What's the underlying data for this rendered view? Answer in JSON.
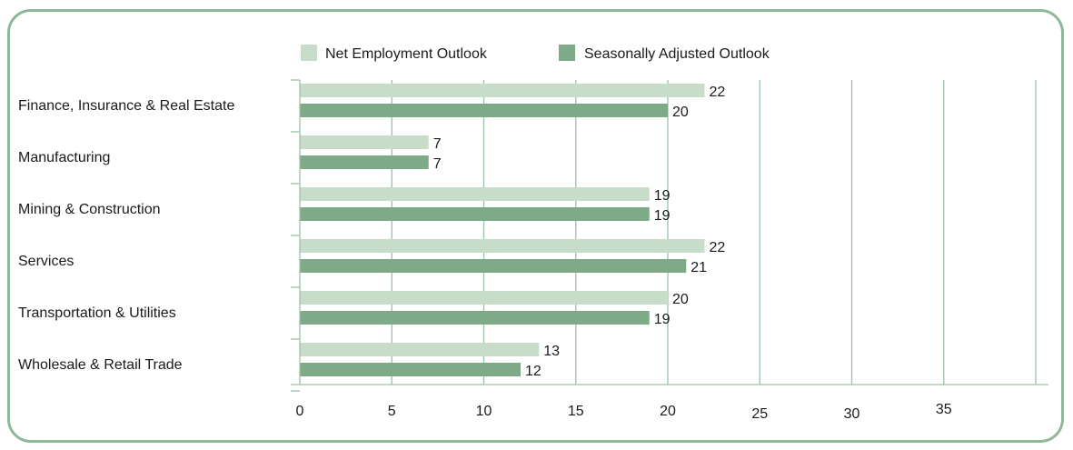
{
  "chart_data": {
    "type": "bar",
    "orientation": "horizontal",
    "categories": [
      "Finance, Insurance & Real Estate",
      "Manufacturing",
      "Mining & Construction",
      "Services",
      "Transportation & Utilities",
      "Wholesale & Retail Trade"
    ],
    "series": [
      {
        "name": "Net Employment Outlook",
        "color": "#c8ddc9",
        "values": [
          22,
          7,
          19,
          22,
          20,
          13
        ]
      },
      {
        "name": "Seasonally Adjusted Outlook",
        "color": "#7faa88",
        "values": [
          20,
          7,
          19,
          21,
          19,
          12
        ]
      }
    ],
    "xticks": [
      "0",
      "5",
      "10",
      "15",
      "20",
      "25",
      "30",
      "35"
    ],
    "xlim": [
      0,
      40
    ],
    "grid": true,
    "legend": "top"
  }
}
